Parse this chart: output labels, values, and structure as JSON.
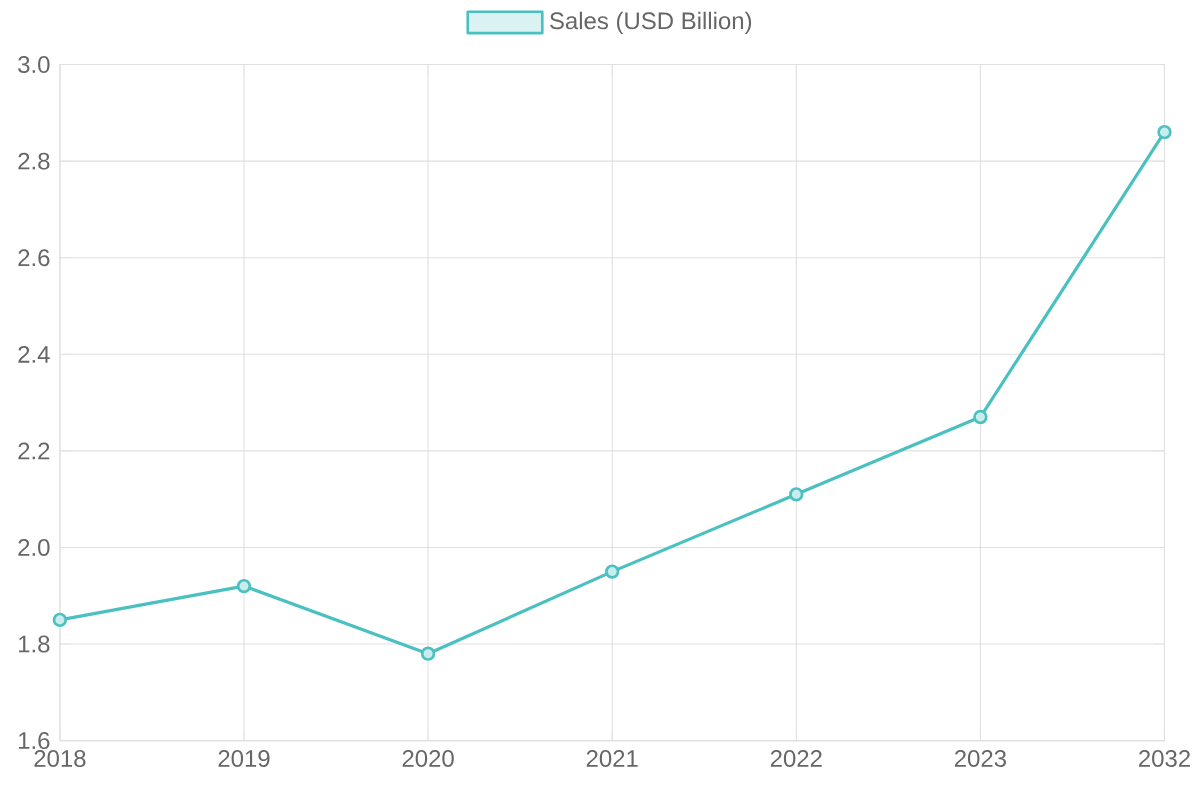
{
  "chart_data": {
    "type": "line",
    "categories": [
      "2018",
      "2019",
      "2020",
      "2021",
      "2022",
      "2023",
      "2032"
    ],
    "series": [
      {
        "name": "Sales (USD Billion)",
        "color": "#4bc0c0",
        "values": [
          1.85,
          1.92,
          1.78,
          1.95,
          2.11,
          2.27,
          2.86
        ]
      }
    ],
    "ylim": [
      1.6,
      3.0
    ],
    "yticks": [
      1.6,
      1.8,
      {
        "value": 2.0,
        "label": "2.0"
      },
      2.2,
      2.4,
      2.6,
      2.8,
      {
        "value": 3.0,
        "label": "3.0"
      }
    ],
    "grid": true,
    "legend": "top",
    "marker": "circle",
    "line_style": "solid"
  }
}
